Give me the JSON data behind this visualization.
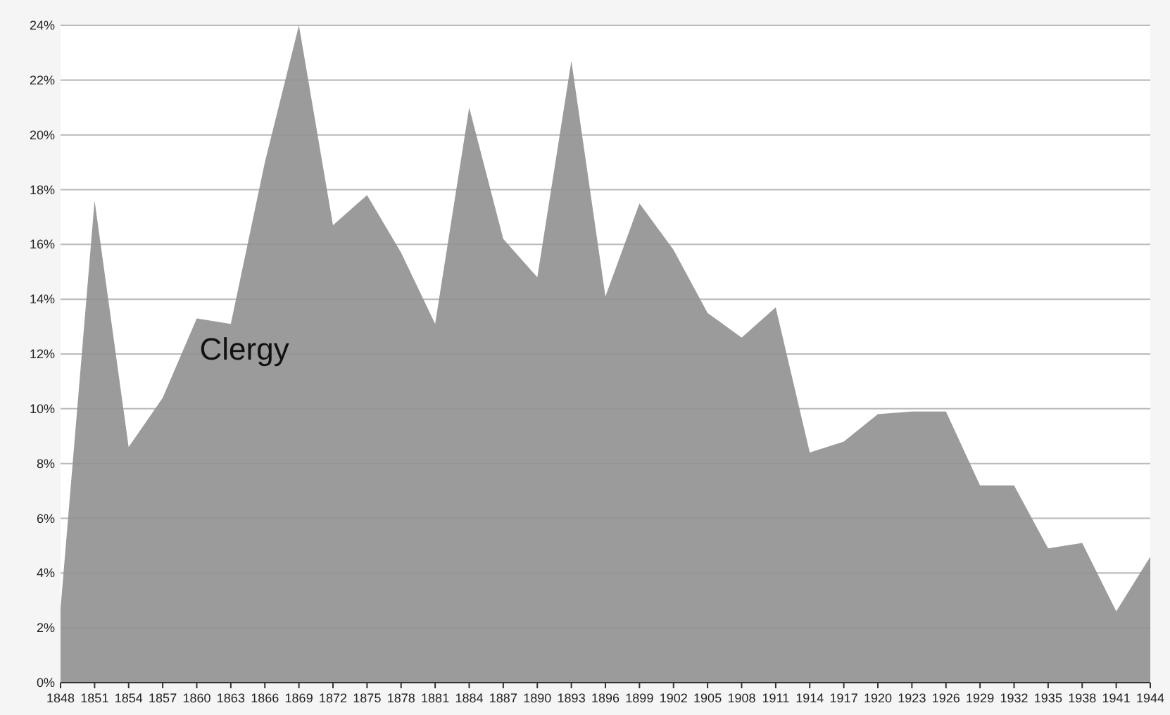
{
  "chart_data": {
    "type": "area",
    "x": [
      1848,
      1851,
      1854,
      1857,
      1860,
      1863,
      1866,
      1869,
      1872,
      1875,
      1878,
      1881,
      1884,
      1887,
      1890,
      1893,
      1896,
      1899,
      1902,
      1905,
      1908,
      1911,
      1914,
      1917,
      1920,
      1923,
      1926,
      1929,
      1932,
      1935,
      1938,
      1941,
      1944
    ],
    "series": [
      {
        "name": "Clergy",
        "color": "#9b9b9b",
        "values": [
          2.7,
          17.6,
          8.6,
          10.4,
          13.3,
          13.1,
          19.0,
          24.0,
          16.7,
          17.8,
          15.7,
          13.1,
          21.0,
          16.2,
          14.8,
          22.7,
          14.1,
          17.5,
          15.8,
          13.5,
          12.6,
          13.7,
          8.4,
          8.8,
          9.8,
          9.9,
          9.9,
          7.2,
          7.2,
          4.9,
          5.1,
          2.6,
          4.6
        ]
      }
    ],
    "xlim": [
      1848,
      1944
    ],
    "xticks": [
      1848,
      1851,
      1854,
      1857,
      1860,
      1863,
      1866,
      1869,
      1872,
      1875,
      1878,
      1881,
      1884,
      1887,
      1890,
      1893,
      1896,
      1899,
      1902,
      1905,
      1908,
      1911,
      1914,
      1917,
      1920,
      1923,
      1926,
      1929,
      1932,
      1935,
      1938,
      1941,
      1944
    ],
    "ylim": [
      0,
      24
    ],
    "yticks": [
      {
        "value": 0,
        "label": "0%"
      },
      {
        "value": 2,
        "label": "2%"
      },
      {
        "value": 4,
        "label": "4%"
      },
      {
        "value": 6,
        "label": "6%"
      },
      {
        "value": 8,
        "label": "8%"
      },
      {
        "value": 10,
        "label": "10%"
      },
      {
        "value": 12,
        "label": "12%"
      },
      {
        "value": 14,
        "label": "14%"
      },
      {
        "value": 16,
        "label": "16%"
      },
      {
        "value": 18,
        "label": "18%"
      },
      {
        "value": 20,
        "label": "20%"
      },
      {
        "value": 22,
        "label": "22%"
      },
      {
        "value": 24,
        "label": "24%"
      }
    ],
    "grid": "y"
  }
}
